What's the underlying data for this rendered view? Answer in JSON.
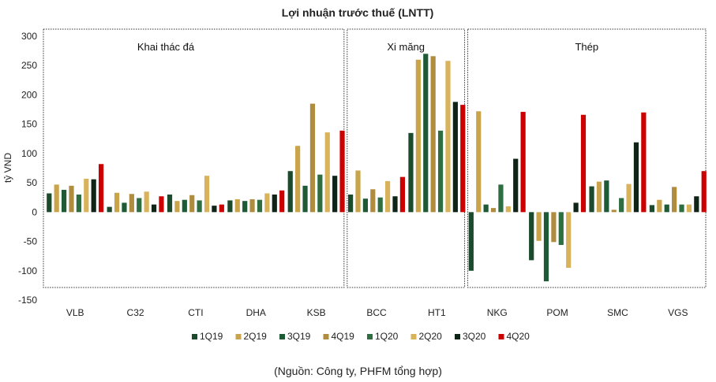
{
  "chart_data": {
    "type": "bar",
    "title": "Lợi nhuận trước thuế (LNTT)",
    "ylabel": "tỷ VND",
    "ylim": [
      -150,
      300
    ],
    "yticks": [
      -150,
      -100,
      -50,
      0,
      50,
      100,
      150,
      200,
      250,
      300
    ],
    "categories": [
      "VLB",
      "C32",
      "CTI",
      "DHA",
      "KSB",
      "BCC",
      "HT1",
      "NKG",
      "POM",
      "SMC",
      "VGS"
    ],
    "groups": [
      {
        "label": "Khai thác đá",
        "categories": [
          "VLB",
          "C32",
          "CTI",
          "DHA",
          "KSB"
        ]
      },
      {
        "label": "Xi măng",
        "categories": [
          "BCC",
          "HT1"
        ]
      },
      {
        "label": "Thép",
        "categories": [
          "NKG",
          "POM",
          "SMC",
          "VGS"
        ]
      }
    ],
    "legend_position": "bottom",
    "series": [
      {
        "name": "1Q19",
        "color": "#1b4a2c",
        "values": [
          32,
          9,
          30,
          20,
          70,
          30,
          135,
          -100,
          -82,
          44,
          12
        ]
      },
      {
        "name": "2Q19",
        "color": "#c9a44a",
        "values": [
          47,
          33,
          19,
          22,
          113,
          71,
          260,
          172,
          -49,
          52,
          21
        ]
      },
      {
        "name": "3Q19",
        "color": "#1e5a36",
        "values": [
          38,
          16,
          21,
          19,
          45,
          23,
          270,
          13,
          -118,
          54,
          13
        ]
      },
      {
        "name": "4Q19",
        "color": "#b08d3e",
        "values": [
          45,
          31,
          29,
          22,
          185,
          39,
          266,
          7,
          -51,
          4,
          43
        ]
      },
      {
        "name": "1Q20",
        "color": "#2e6e41",
        "values": [
          30,
          24,
          20,
          21,
          64,
          25,
          139,
          47,
          -56,
          24,
          13
        ]
      },
      {
        "name": "2Q20",
        "color": "#d8b35c",
        "values": [
          57,
          35,
          62,
          32,
          136,
          53,
          258,
          10,
          -95,
          48,
          13
        ]
      },
      {
        "name": "3Q20",
        "color": "#0f2417",
        "values": [
          56,
          13,
          11,
          30,
          62,
          27,
          188,
          91,
          16,
          119,
          27
        ]
      },
      {
        "name": "4Q20",
        "color": "#cc0000",
        "values": [
          82,
          27,
          13,
          37,
          139,
          60,
          183,
          171,
          166,
          170,
          70
        ]
      }
    ]
  },
  "source": "(Nguồn: Công ty, PHFM tổng hợp)"
}
